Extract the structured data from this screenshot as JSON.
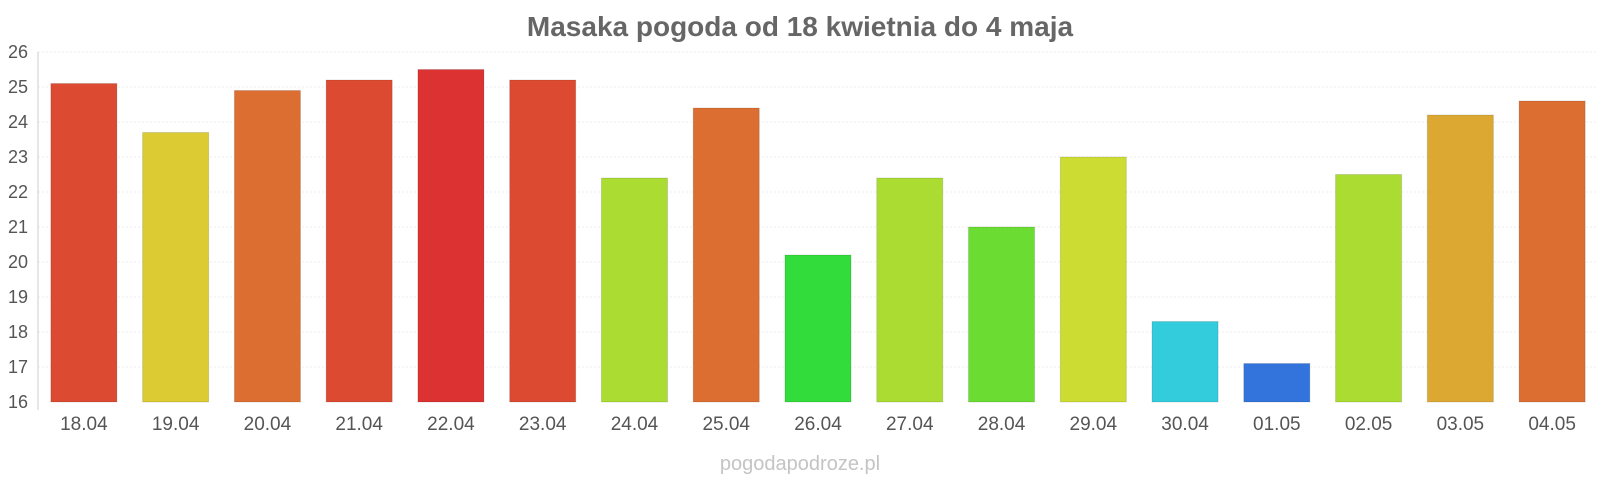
{
  "chart_data": {
    "type": "bar",
    "title": "Masaka pogoda od 18 kwietnia do 4 maja",
    "xlabel": "",
    "ylabel": "",
    "ylim": [
      16,
      26
    ],
    "yticks": [
      "16",
      "17",
      "18",
      "19",
      "20",
      "21",
      "22",
      "23",
      "24",
      "25",
      "26"
    ],
    "grid": true,
    "legend": "none",
    "categories": [
      "18.04",
      "19.04",
      "20.04",
      "21.04",
      "22.04",
      "23.04",
      "24.04",
      "25.04",
      "26.04",
      "27.04",
      "28.04",
      "29.04",
      "30.04",
      "01.05",
      "02.05",
      "03.05",
      "04.05"
    ],
    "values": [
      25.1,
      23.7,
      24.9,
      25.2,
      25.5,
      25.2,
      22.4,
      24.4,
      20.2,
      22.4,
      21.0,
      23.0,
      18.3,
      17.1,
      22.5,
      24.2,
      24.6
    ],
    "colors": [
      "#dc4a32",
      "#dccb32",
      "#dc6e32",
      "#dc4a32",
      "#dc3232",
      "#dc4a32",
      "#abdc32",
      "#dc6e32",
      "#32dc3a",
      "#abdc32",
      "#6bdc32",
      "#cddc32",
      "#32ccdc",
      "#3274dc",
      "#abdc32",
      "#dca832",
      "#dc6e32"
    ]
  },
  "footer": {
    "watermark": "pogodapodroze.pl"
  }
}
